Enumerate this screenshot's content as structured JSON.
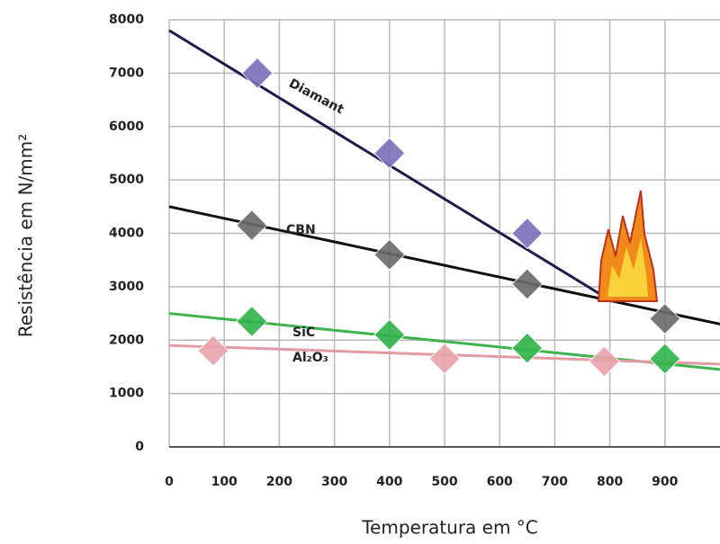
{
  "chart_data": {
    "type": "line",
    "xlabel": "Temperatura em °C",
    "ylabel": "Resistência em N/mm²",
    "xlim": [
      0,
      1000
    ],
    "xticks": [
      0,
      100,
      200,
      300,
      400,
      500,
      600,
      700,
      800,
      900
    ],
    "ylim": [
      0,
      8000
    ],
    "yticks": [
      0,
      1000,
      2000,
      3000,
      4000,
      5000,
      6000,
      7000,
      8000
    ],
    "grid": true,
    "series": [
      {
        "name": "Diamant",
        "color": "#7a70b8",
        "line_color": "#1e1a4a",
        "x": [
          160,
          400,
          650
        ],
        "values": [
          7000,
          5500,
          4000
        ],
        "trend_x": [
          0,
          800
        ],
        "trend_values": [
          7800,
          2750
        ]
      },
      {
        "name": "CBN",
        "color": "#6a6a6a",
        "line_color": "#111111",
        "x": [
          150,
          400,
          650,
          900
        ],
        "values": [
          4150,
          3600,
          3050,
          2400
        ],
        "trend_x": [
          0,
          1000
        ],
        "trend_values": [
          4500,
          2300
        ]
      },
      {
        "name": "SiC",
        "color": "#2fb34a",
        "line_color": "#3cb44b",
        "x": [
          150,
          400,
          650,
          900
        ],
        "values": [
          2350,
          2100,
          1850,
          1650
        ],
        "trend_x": [
          0,
          1000
        ],
        "trend_values": [
          2500,
          1450
        ]
      },
      {
        "name": "Al₂O₃",
        "color": "#e9a3ab",
        "line_color": "#e39aa2",
        "x": [
          80,
          500,
          790
        ],
        "values": [
          1800,
          1650,
          1600
        ],
        "trend_x": [
          0,
          1000
        ],
        "trend_values": [
          1900,
          1550
        ]
      }
    ]
  }
}
